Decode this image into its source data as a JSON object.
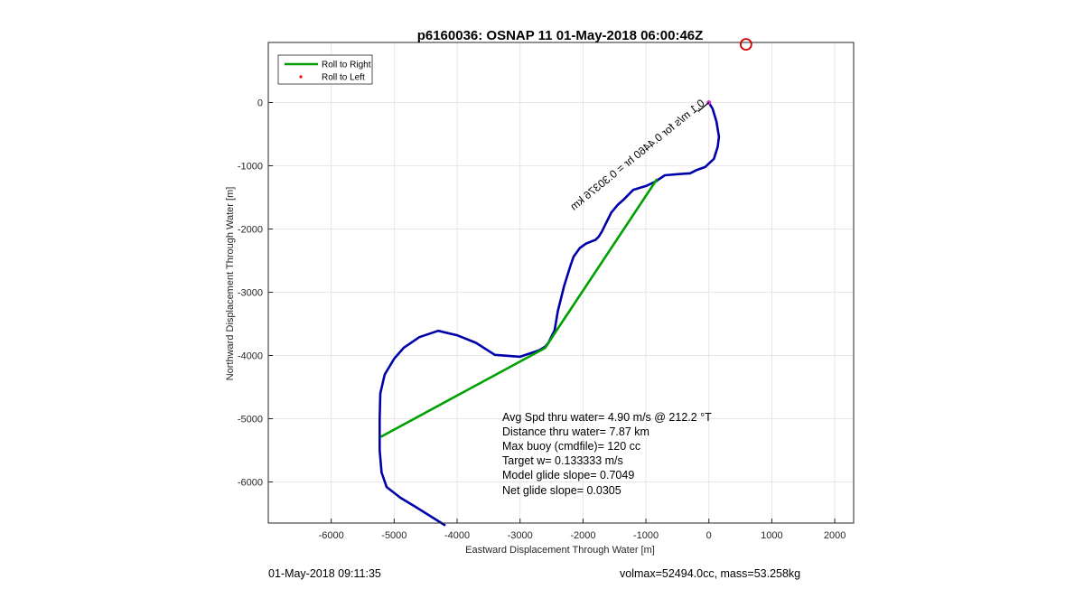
{
  "chart_data": {
    "type": "line",
    "title": "p6160036: OSNAP 11 01-May-2018 06:00:46Z",
    "xlabel": "Eastward Displacement Through Water [m]",
    "ylabel": "Northward Displacement Through Water [m]",
    "xlim": [
      -7000,
      2300
    ],
    "ylim": [
      -6650,
      950
    ],
    "xticks": [
      -6000,
      -5000,
      -4000,
      -3000,
      -2000,
      -1000,
      0,
      1000,
      2000
    ],
    "yticks": [
      0,
      -1000,
      -2000,
      -3000,
      -4000,
      -5000,
      -6000
    ],
    "grid": true,
    "legend_position": "top-left",
    "legend": [
      {
        "label": "Roll to Right",
        "color": "#00a000",
        "style": "line"
      },
      {
        "label": "Roll to Left",
        "color": "#ff0000",
        "style": "point"
      }
    ],
    "series": [
      {
        "name": "track",
        "color": "#0000aa",
        "x": [
          0,
          60,
          120,
          160,
          140,
          80,
          -60,
          -200,
          -300,
          -450,
          -700,
          -850,
          -1000,
          -1200,
          -1350,
          -1450,
          -1550,
          -1700,
          -1750,
          -1800,
          -1950,
          -2050,
          -2150,
          -2200,
          -2300,
          -2400,
          -2450,
          -2500,
          -2550,
          -2600,
          -2700,
          -3000,
          -3400,
          -3700,
          -4000,
          -4300,
          -4600,
          -4850,
          -5000,
          -5150,
          -5220,
          -5230,
          -5230,
          -5200,
          -5120,
          -4900,
          -4650,
          -4200
        ],
        "y": [
          0,
          -100,
          -300,
          -540,
          -700,
          -890,
          -1020,
          -1070,
          -1120,
          -1130,
          -1150,
          -1250,
          -1320,
          -1380,
          -1530,
          -1620,
          -1740,
          -2040,
          -2120,
          -2170,
          -2230,
          -2300,
          -2440,
          -2580,
          -2900,
          -3300,
          -3600,
          -3700,
          -3800,
          -3860,
          -3920,
          -4020,
          -3990,
          -3800,
          -3680,
          -3610,
          -3710,
          -3880,
          -4050,
          -4300,
          -4600,
          -5000,
          -5500,
          -5850,
          -6080,
          -6250,
          -6400,
          -6680
        ]
      },
      {
        "name": "Roll to Right",
        "color": "#00a000",
        "x": [
          -830,
          -2450,
          -2600,
          -5200
        ],
        "y": [
          -1220,
          -3650,
          -3880,
          -5280
        ]
      }
    ],
    "target_marker": {
      "x": 590,
      "y": 920,
      "color": "#d00000"
    },
    "current_vector_label": "0.1 m/s for 0.4460 hr = 0.30376 km",
    "current_vector_angle_deg": 212.2
  },
  "annotations": [
    "Avg Spd thru water=  4.90 m/s @ 212.2 °T",
    "Distance thru water=  7.87 km",
    "Max buoy (cmdfile)= 120 cc",
    "Target w= 0.133333 m/s",
    "Model glide slope= 0.7049",
    "Net glide slope= 0.0305"
  ],
  "footer": {
    "left": "01-May-2018 09:11:35",
    "right": "volmax=52494.0cc, mass=53.258kg"
  }
}
